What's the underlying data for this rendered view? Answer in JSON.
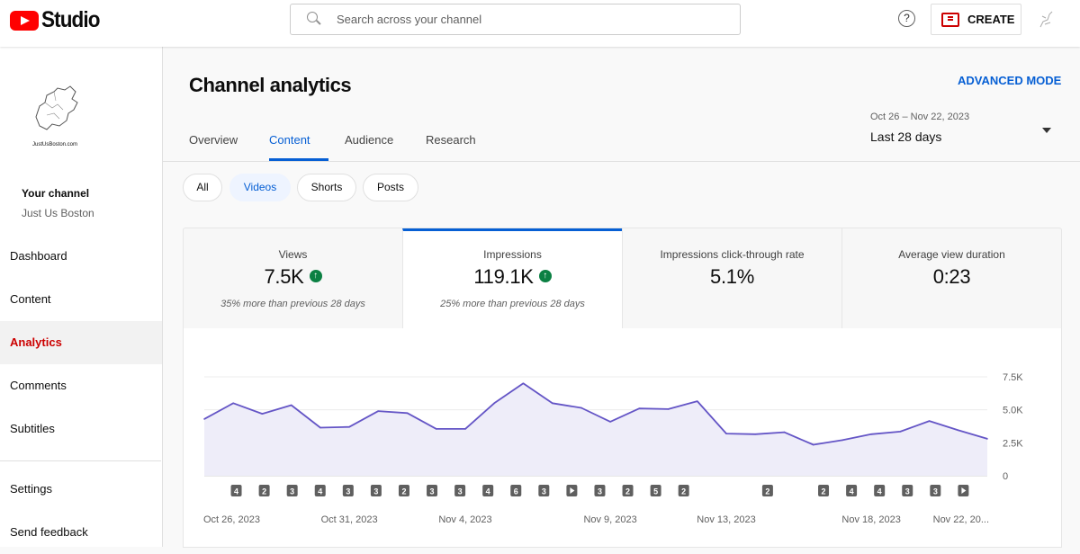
{
  "topbar": {
    "logo_text": "Studio",
    "search_placeholder": "Search across your channel",
    "help_label": "?",
    "create_label": "CREATE"
  },
  "sidebar": {
    "thumbnail_text": "JustUsBoston.com",
    "your_channel": "Your channel",
    "channel_name": "Just Us Boston",
    "items": [
      {
        "label": "Dashboard"
      },
      {
        "label": "Content"
      },
      {
        "label": "Analytics"
      },
      {
        "label": "Comments"
      },
      {
        "label": "Subtitles"
      }
    ],
    "bottom_items": [
      {
        "label": "Settings"
      },
      {
        "label": "Send feedback"
      }
    ]
  },
  "main": {
    "title": "Channel analytics",
    "advanced_mode": "ADVANCED MODE",
    "tabs": [
      {
        "label": "Overview"
      },
      {
        "label": "Content"
      },
      {
        "label": "Audience"
      },
      {
        "label": "Research"
      }
    ],
    "date_range": {
      "subtitle": "Oct 26 – Nov 22, 2023",
      "label": "Last 28 days"
    },
    "chips": [
      "All",
      "Videos",
      "Shorts",
      "Posts"
    ],
    "metrics": [
      {
        "label": "Views",
        "value": "7.5K",
        "note": "35% more than previous 28 days"
      },
      {
        "label": "Impressions",
        "value": "119.1K",
        "note": "25% more than previous 28 days"
      },
      {
        "label": "Impressions click-through rate",
        "value": "5.1%",
        "note": ""
      },
      {
        "label": "Average view duration",
        "value": "0:23",
        "note": ""
      }
    ]
  },
  "colors": {
    "accent_blue": "#065fd4",
    "brand_red": "#ff0000",
    "series_line": "#6455c6"
  },
  "chart_data": {
    "type": "area",
    "x": [
      "Oct 26, 2023",
      "Oct 27",
      "Oct 28",
      "Oct 29",
      "Oct 30",
      "Oct 31, 2023",
      "Nov 1",
      "Nov 2",
      "Nov 3",
      "Nov 4, 2023",
      "Nov 5",
      "Nov 6",
      "Nov 7",
      "Nov 8",
      "Nov 9, 2023",
      "Nov 10",
      "Nov 11",
      "Nov 12",
      "Nov 13, 2023",
      "Nov 14",
      "Nov 15",
      "Nov 16",
      "Nov 17",
      "Nov 18, 2023",
      "Nov 19",
      "Nov 20",
      "Nov 21",
      "Nov 22, 2023"
    ],
    "series": [
      {
        "values": [
          4300,
          5500,
          4700,
          5350,
          3650,
          3700,
          4900,
          4750,
          3550,
          3550,
          5500,
          7000,
          5500,
          5150,
          4100,
          5100,
          5050,
          5650,
          3200,
          3150,
          3300,
          2350,
          2700,
          3150,
          3350,
          4150,
          3450,
          2800
        ]
      }
    ],
    "ylim": [
      0,
      7500
    ],
    "y_ticks": [
      "7.5K",
      "5.0K",
      "2.5K",
      "0"
    ],
    "x_tick_labels": [
      "Oct 26, 2023",
      "Oct 31, 2023",
      "Nov 4, 2023",
      "Nov 9, 2023",
      "Nov 13, 2023",
      "Nov 18, 2023",
      "Nov 22, 20..."
    ],
    "x_tick_indices": [
      0,
      5,
      9,
      14,
      18,
      23,
      27
    ],
    "markers": [
      {
        "day": 1,
        "label": "4"
      },
      {
        "day": 2,
        "label": "2"
      },
      {
        "day": 3,
        "label": "3"
      },
      {
        "day": 4,
        "label": "4"
      },
      {
        "day": 5,
        "label": "3"
      },
      {
        "day": 6,
        "label": "3"
      },
      {
        "day": 7,
        "label": "2"
      },
      {
        "day": 8,
        "label": "3"
      },
      {
        "day": 9,
        "label": "3"
      },
      {
        "day": 10,
        "label": "4"
      },
      {
        "day": 11,
        "label": "6"
      },
      {
        "day": 12,
        "label": "3"
      },
      {
        "day": 13,
        "label": "play"
      },
      {
        "day": 14,
        "label": "3"
      },
      {
        "day": 15,
        "label": "2"
      },
      {
        "day": 16,
        "label": "5"
      },
      {
        "day": 17,
        "label": "2"
      },
      {
        "day": 20,
        "label": "2"
      },
      {
        "day": 22,
        "label": "2"
      },
      {
        "day": 23,
        "label": "4"
      },
      {
        "day": 24,
        "label": "4"
      },
      {
        "day": 25,
        "label": "3"
      },
      {
        "day": 26,
        "label": "3"
      },
      {
        "day": 27,
        "label": "play"
      }
    ],
    "grid": true
  }
}
